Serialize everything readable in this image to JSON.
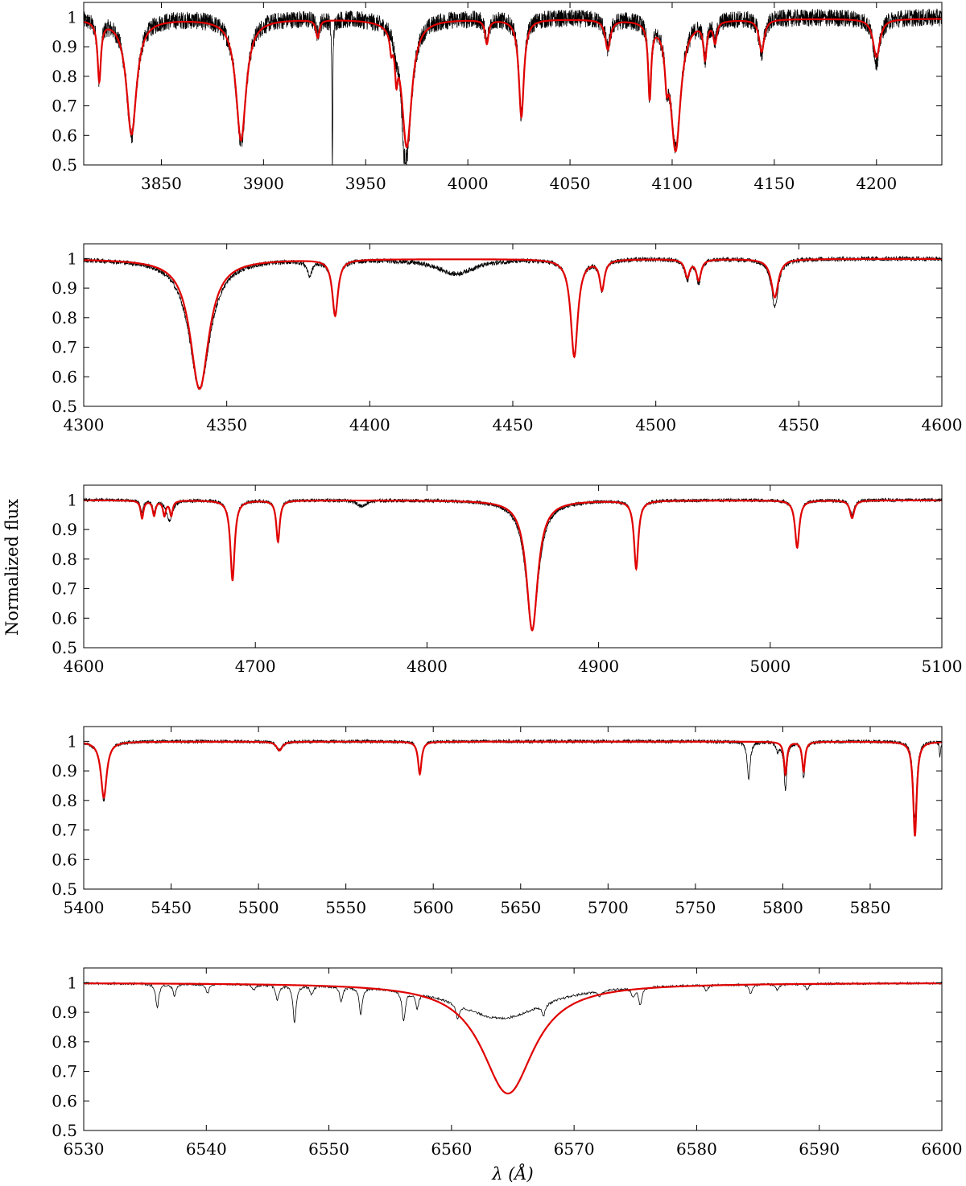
{
  "figure": {
    "ylabel": "Normalized flux",
    "xlabel": "λ (Å)"
  },
  "colors": {
    "observed": "#000000",
    "model": "#e00000"
  },
  "chart_data": [
    {
      "type": "line",
      "xlim": [
        3812,
        4232
      ],
      "ylim": [
        0.5,
        1.05
      ],
      "xticks": [
        3850,
        3900,
        3950,
        4000,
        4050,
        4100,
        4150,
        4200
      ],
      "yticks": [
        0.5,
        0.6,
        0.7,
        0.8,
        0.9,
        1
      ],
      "noise": 0.03,
      "series": [
        {
          "role": "observed",
          "continuum": 1.0,
          "lines": [
            [
              3819.6,
              0.2,
              1.0
            ],
            [
              3835.4,
              0.4,
              3.0
            ],
            [
              3889.0,
              0.42,
              3.0
            ],
            [
              3926.5,
              0.05,
              1.0
            ],
            [
              3933.7,
              0.5,
              0.25
            ],
            [
              3964.7,
              0.05,
              0.8
            ],
            [
              3968.5,
              0.1,
              0.8
            ],
            [
              3970.1,
              0.45,
              3.0
            ],
            [
              4009.3,
              0.08,
              1.0
            ],
            [
              4026.2,
              0.33,
              1.5
            ],
            [
              4068.5,
              0.1,
              1.5
            ],
            [
              4089.0,
              0.25,
              0.9
            ],
            [
              4097.3,
              0.12,
              1.0
            ],
            [
              4101.7,
              0.44,
              3.0
            ],
            [
              4116.1,
              0.12,
              1.0
            ],
            [
              4121.0,
              0.07,
              1.0
            ],
            [
              4143.8,
              0.12,
              1.5
            ],
            [
              4200.0,
              0.15,
              2.0
            ]
          ]
        },
        {
          "role": "model",
          "continuum": 0.995,
          "lines": [
            [
              3819.6,
              0.2,
              1.0
            ],
            [
              3835.4,
              0.39,
              3.0
            ],
            [
              3889.0,
              0.41,
              3.0
            ],
            [
              3926.5,
              0.06,
              1.0
            ],
            [
              3962.5,
              0.06,
              0.8
            ],
            [
              3965.0,
              0.12,
              0.8
            ],
            [
              3970.1,
              0.43,
              3.0
            ],
            [
              4009.3,
              0.08,
              1.0
            ],
            [
              4026.2,
              0.33,
              1.5
            ],
            [
              4068.5,
              0.1,
              1.5
            ],
            [
              4089.0,
              0.25,
              0.9
            ],
            [
              4097.3,
              0.12,
              1.0
            ],
            [
              4101.7,
              0.44,
              3.0
            ],
            [
              4116.1,
              0.12,
              1.0
            ],
            [
              4121.0,
              0.07,
              1.0
            ],
            [
              4143.8,
              0.11,
              1.5
            ],
            [
              4200.0,
              0.13,
              2.0
            ]
          ]
        }
      ]
    },
    {
      "type": "line",
      "xlim": [
        4300,
        4600
      ],
      "ylim": [
        0.5,
        1.05
      ],
      "xticks": [
        4300,
        4350,
        4400,
        4450,
        4500,
        4550,
        4600
      ],
      "yticks": [
        0.5,
        0.6,
        0.7,
        0.8,
        0.9,
        1
      ],
      "noise": 0.008,
      "series": [
        {
          "role": "observed",
          "continuum": 1.0,
          "lines": [
            [
              4340.5,
              0.44,
              4.5
            ],
            [
              4379.0,
              0.05,
              1.0
            ],
            [
              4387.9,
              0.18,
              1.2
            ],
            [
              4430.0,
              0.05,
              8.0
            ],
            [
              4471.5,
              0.32,
              1.5
            ],
            [
              4481.2,
              0.1,
              1.0
            ],
            [
              4511.0,
              0.07,
              1.0
            ],
            [
              4515.0,
              0.08,
              1.0
            ],
            [
              4541.6,
              0.16,
              1.5
            ]
          ]
        },
        {
          "role": "model",
          "continuum": 0.999,
          "lines": [
            [
              4340.5,
              0.44,
              4.0
            ],
            [
              4387.9,
              0.19,
              1.2
            ],
            [
              4471.5,
              0.33,
              1.5
            ],
            [
              4481.2,
              0.1,
              1.0
            ],
            [
              4511.0,
              0.06,
              1.0
            ],
            [
              4515.0,
              0.07,
              1.0
            ],
            [
              4541.6,
              0.13,
              1.5
            ]
          ]
        }
      ]
    },
    {
      "type": "line",
      "xlim": [
        4600,
        5100
      ],
      "ylim": [
        0.5,
        1.05
      ],
      "xticks": [
        4600,
        4700,
        4800,
        4900,
        5000,
        5100
      ],
      "yticks": [
        0.5,
        0.6,
        0.7,
        0.8,
        0.9,
        1
      ],
      "noise": 0.006,
      "series": [
        {
          "role": "observed",
          "continuum": 1.0,
          "lines": [
            [
              4634.0,
              0.04,
              1.0
            ],
            [
              4641.0,
              0.04,
              1.0
            ],
            [
              4650.0,
              0.07,
              2.0
            ],
            [
              4686.7,
              0.25,
              1.5
            ],
            [
              4713.2,
              0.14,
              1.2
            ],
            [
              4762.0,
              0.02,
              3.0
            ],
            [
              4861.3,
              0.44,
              4.5
            ],
            [
              4921.9,
              0.22,
              1.5
            ],
            [
              5015.7,
              0.15,
              1.5
            ],
            [
              5047.7,
              0.05,
              1.5
            ]
          ]
        },
        {
          "role": "model",
          "continuum": 0.999,
          "lines": [
            [
              4634.0,
              0.06,
              1.0
            ],
            [
              4641.0,
              0.05,
              1.0
            ],
            [
              4647.0,
              0.05,
              1.0
            ],
            [
              4651.0,
              0.05,
              1.0
            ],
            [
              4686.7,
              0.27,
              1.5
            ],
            [
              4713.2,
              0.14,
              1.2
            ],
            [
              4861.3,
              0.44,
              4.0
            ],
            [
              4921.9,
              0.23,
              1.5
            ],
            [
              5015.7,
              0.16,
              1.5
            ],
            [
              5047.7,
              0.06,
              1.5
            ]
          ]
        }
      ]
    },
    {
      "type": "line",
      "xlim": [
        5400,
        5891
      ],
      "ylim": [
        0.5,
        1.05
      ],
      "xticks": [
        5400,
        5450,
        5500,
        5550,
        5600,
        5650,
        5700,
        5750,
        5800,
        5850
      ],
      "yticks": [
        0.5,
        0.6,
        0.7,
        0.8,
        0.9,
        1
      ],
      "noise": 0.006,
      "series": [
        {
          "role": "observed",
          "continuum": 1.0,
          "lines": [
            [
              5411.5,
              0.2,
              2.0
            ],
            [
              5512.0,
              0.03,
              2.0
            ],
            [
              5592.3,
              0.11,
              1.2
            ],
            [
              5780.5,
              0.13,
              1.0
            ],
            [
              5797.0,
              0.03,
              1.0
            ],
            [
              5801.5,
              0.16,
              1.0
            ],
            [
              5811.9,
              0.12,
              1.0
            ],
            [
              5875.6,
              0.26,
              1.2
            ],
            [
              5889.9,
              0.05,
              0.4
            ]
          ]
        },
        {
          "role": "model",
          "continuum": 0.999,
          "lines": [
            [
              5411.5,
              0.19,
              2.0
            ],
            [
              5512.0,
              0.03,
              2.0
            ],
            [
              5592.3,
              0.11,
              1.2
            ],
            [
              5801.5,
              0.11,
              1.0
            ],
            [
              5811.9,
              0.1,
              1.0
            ],
            [
              5875.6,
              0.32,
              1.2
            ]
          ]
        }
      ]
    },
    {
      "type": "line",
      "xlim": [
        6530,
        6600
      ],
      "ylim": [
        0.5,
        1.05
      ],
      "xticks": [
        6530,
        6540,
        6550,
        6560,
        6570,
        6580,
        6590,
        6600
      ],
      "yticks": [
        0.5,
        0.6,
        0.7,
        0.8,
        0.9,
        1
      ],
      "noise": 0.004,
      "series": [
        {
          "role": "observed",
          "continuum": 1.0,
          "lines": [
            [
              6564.0,
              0.12,
              4.5
            ],
            [
              6536.0,
              0.08,
              0.15
            ],
            [
              6537.4,
              0.04,
              0.15
            ],
            [
              6540.1,
              0.03,
              0.15
            ],
            [
              6543.9,
              0.02,
              0.15
            ],
            [
              6545.8,
              0.05,
              0.15
            ],
            [
              6547.2,
              0.13,
              0.15
            ],
            [
              6548.6,
              0.03,
              0.15
            ],
            [
              6551.0,
              0.05,
              0.15
            ],
            [
              6552.6,
              0.09,
              0.15
            ],
            [
              6556.1,
              0.1,
              0.15
            ],
            [
              6557.2,
              0.05,
              0.15
            ],
            [
              6560.5,
              0.05,
              0.15
            ],
            [
              6567.5,
              0.04,
              0.15
            ],
            [
              6572.1,
              0.02,
              0.15
            ],
            [
              6574.8,
              0.03,
              0.15
            ],
            [
              6575.4,
              0.06,
              0.15
            ],
            [
              6580.8,
              0.02,
              0.15
            ],
            [
              6584.4,
              0.03,
              0.15
            ],
            [
              6586.6,
              0.02,
              0.15
            ],
            [
              6589.0,
              0.02,
              0.15
            ]
          ]
        },
        {
          "role": "model",
          "continuum": 1.0,
          "lines": [
            [
              6564.6,
              0.375,
              2.6
            ]
          ]
        }
      ]
    }
  ]
}
